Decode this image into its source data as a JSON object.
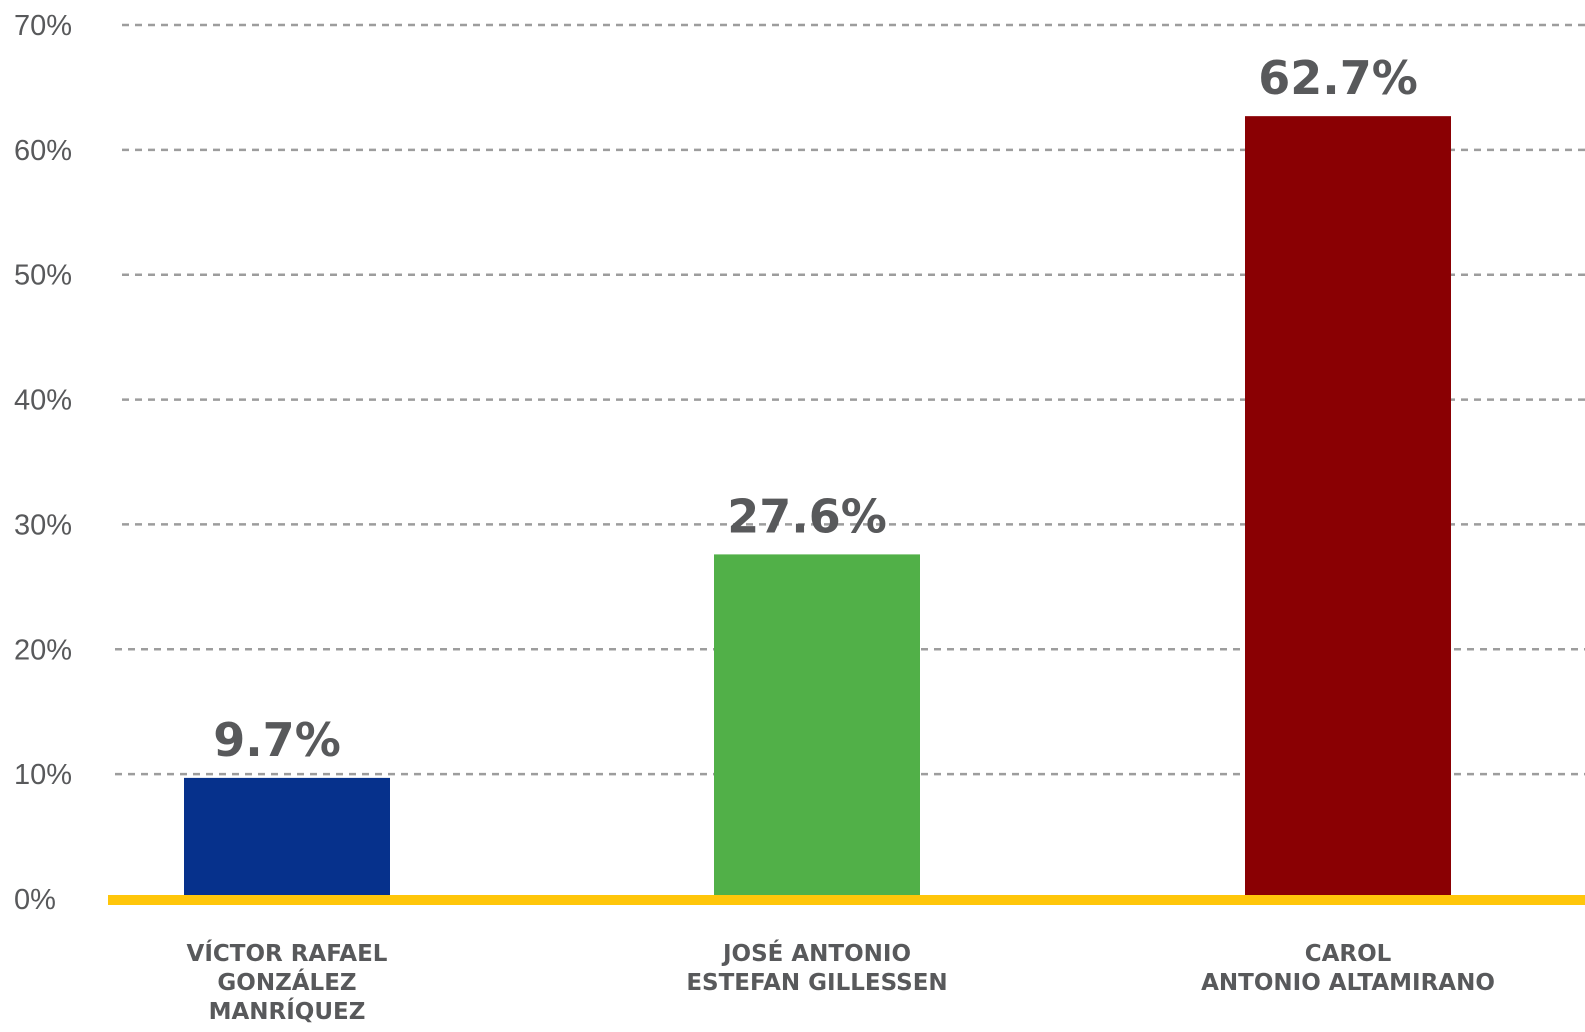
{
  "chart_data": {
    "type": "bar",
    "categories": [
      [
        "VÍCTOR RAFAEL",
        "GONZÁLEZ",
        "MANRÍQUEZ"
      ],
      [
        "JOSÉ ANTONIO",
        "ESTEFAN GILLESSEN"
      ],
      [
        "CAROL",
        "ANTONIO ALTAMIRANO"
      ]
    ],
    "values": [
      9.7,
      27.6,
      62.7
    ],
    "value_labels": [
      "9.7%",
      "27.6%",
      "62.7%"
    ],
    "bar_colors": [
      "#06318c",
      "#51b048",
      "#8a0003"
    ],
    "y_ticks": [
      0,
      10,
      20,
      30,
      40,
      50,
      60,
      70
    ],
    "y_tick_labels": [
      "0%",
      "10%",
      "20%",
      "30%",
      "40%",
      "50%",
      "60%",
      "70%"
    ],
    "ylim": [
      0,
      70
    ],
    "grid": true,
    "grid_style": "dashed",
    "grid_color": "#9d9d9d",
    "baseline_color": "#ffc60a",
    "text_color": "#58595b",
    "title": "",
    "xlabel": "",
    "ylabel": ""
  }
}
